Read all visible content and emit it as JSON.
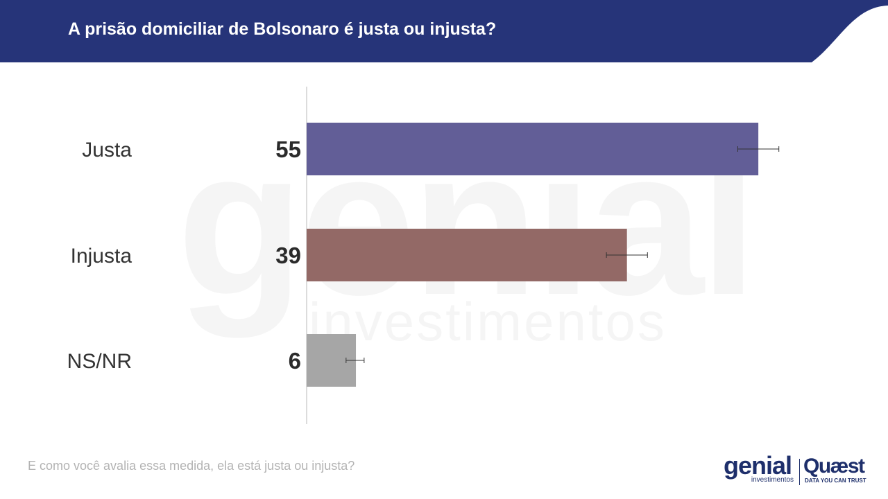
{
  "header": {
    "title": "A prisão domiciliar de Bolsonaro é justa ou injusta?",
    "color": "#263479"
  },
  "chart_data": {
    "type": "bar",
    "orientation": "horizontal",
    "title": "A prisão domiciliar de Bolsonaro é justa ou injusta?",
    "categories": [
      "Justa",
      "Injusta",
      "NS/NR"
    ],
    "values": [
      55,
      39,
      6
    ],
    "labels": [
      "55",
      "39",
      "6"
    ],
    "error_bars": [
      [
        52.5,
        57.5
      ],
      [
        36.5,
        41.5
      ],
      [
        4.8,
        7.0
      ]
    ],
    "colors": [
      "#625e97",
      "#936966",
      "#a6a6a6"
    ],
    "xlim": [
      0,
      68
    ],
    "grid": false
  },
  "footnote": "E como você avalia essa medida, ela está justa ou injusta?",
  "watermark": {
    "name": "genial",
    "sub": "investimentos"
  },
  "logos": {
    "genial": {
      "name": "genial",
      "sub": "investimentos"
    },
    "quaest": {
      "name": "Quæst",
      "tagline": "DATA YOU CAN TRUST"
    }
  }
}
